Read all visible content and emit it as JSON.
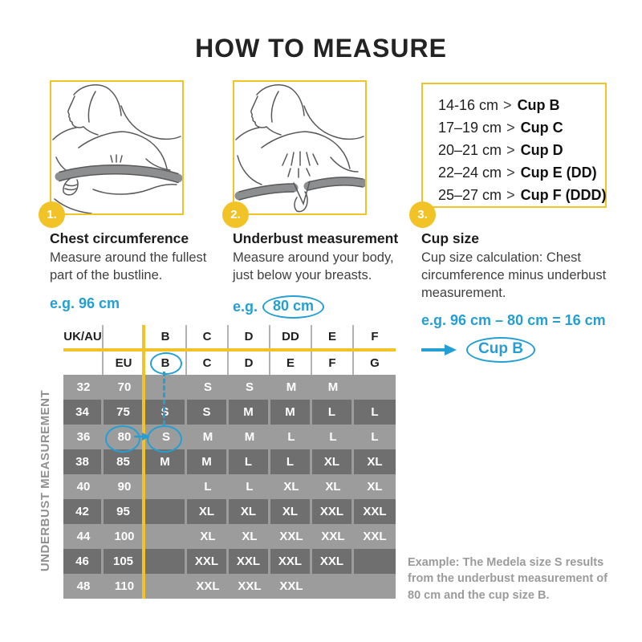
{
  "title": "HOW TO MEASURE",
  "steps": [
    {
      "number": "1.",
      "heading": "Chest circumference",
      "body": "Measure around the fullest part of the bustline.",
      "example": "e.g. 96 cm"
    },
    {
      "number": "2.",
      "heading": "Underbust measurement",
      "body": "Measure around your body, just below your breasts.",
      "example_prefix": "e.g.",
      "example_value": "80 cm"
    },
    {
      "number": "3.",
      "heading": "Cup size",
      "body": "Cup size calculation: Chest circumference minus underbust measurement.",
      "example": "e.g. 96 cm – 80 cm = 16 cm",
      "result": "Cup B"
    }
  ],
  "cup_size_chart": {
    "separator": ">",
    "items": [
      {
        "range": "14-16 cm",
        "cup": "Cup B"
      },
      {
        "range": "17–19 cm",
        "cup": "Cup C"
      },
      {
        "range": "20–21 cm",
        "cup": "Cup D"
      },
      {
        "range": "22–24 cm",
        "cup": "Cup E (DD)"
      },
      {
        "range": "25–27 cm",
        "cup": "Cup F (DDD)"
      }
    ]
  },
  "size_table": {
    "side_label": "UNDERBUST MEASUREMENT",
    "uk_au_label": "UK/AU",
    "eu_label": "EU",
    "uk_cups": [
      "B",
      "C",
      "D",
      "DD",
      "E",
      "F"
    ],
    "eu_cups": [
      "B",
      "C",
      "D",
      "E",
      "F",
      "G"
    ],
    "rows": [
      {
        "uk": "32",
        "eu": "70",
        "sizes": [
          "",
          "S",
          "S",
          "M",
          "M",
          ""
        ]
      },
      {
        "uk": "34",
        "eu": "75",
        "sizes": [
          "S",
          "S",
          "M",
          "M",
          "L",
          "L"
        ]
      },
      {
        "uk": "36",
        "eu": "80",
        "sizes": [
          "S",
          "M",
          "M",
          "L",
          "L",
          "L"
        ]
      },
      {
        "uk": "38",
        "eu": "85",
        "sizes": [
          "M",
          "M",
          "L",
          "L",
          "XL",
          "XL"
        ]
      },
      {
        "uk": "40",
        "eu": "90",
        "sizes": [
          "",
          "L",
          "L",
          "XL",
          "XL",
          "XL"
        ]
      },
      {
        "uk": "42",
        "eu": "95",
        "sizes": [
          "",
          "XL",
          "XL",
          "XL",
          "XXL",
          "XXL"
        ]
      },
      {
        "uk": "44",
        "eu": "100",
        "sizes": [
          "",
          "XL",
          "XL",
          "XXL",
          "XXL",
          "XXL"
        ]
      },
      {
        "uk": "46",
        "eu": "105",
        "sizes": [
          "",
          "XXL",
          "XXL",
          "XXL",
          "XXL",
          ""
        ]
      },
      {
        "uk": "48",
        "eu": "110",
        "sizes": [
          "",
          "XXL",
          "XXL",
          "XXL",
          "",
          ""
        ]
      }
    ],
    "highlight": {
      "circled_eu_header_cup": "B",
      "circled_eu_value": "80",
      "circled_size": "S"
    }
  },
  "footnote": "Example: The Medela size S results from the underbust measurement of 80 cm and the cup size B.",
  "colors": {
    "yellow": "#F2C327",
    "blue": "#239FD4",
    "row_light": "#9C9C9C",
    "row_dark": "#6F6F6F",
    "header_sep": "#B3B3B3",
    "text_dark": "#232323",
    "body_text": "#404042",
    "gray_label": "#8F9090",
    "sketch": "#58595B"
  }
}
